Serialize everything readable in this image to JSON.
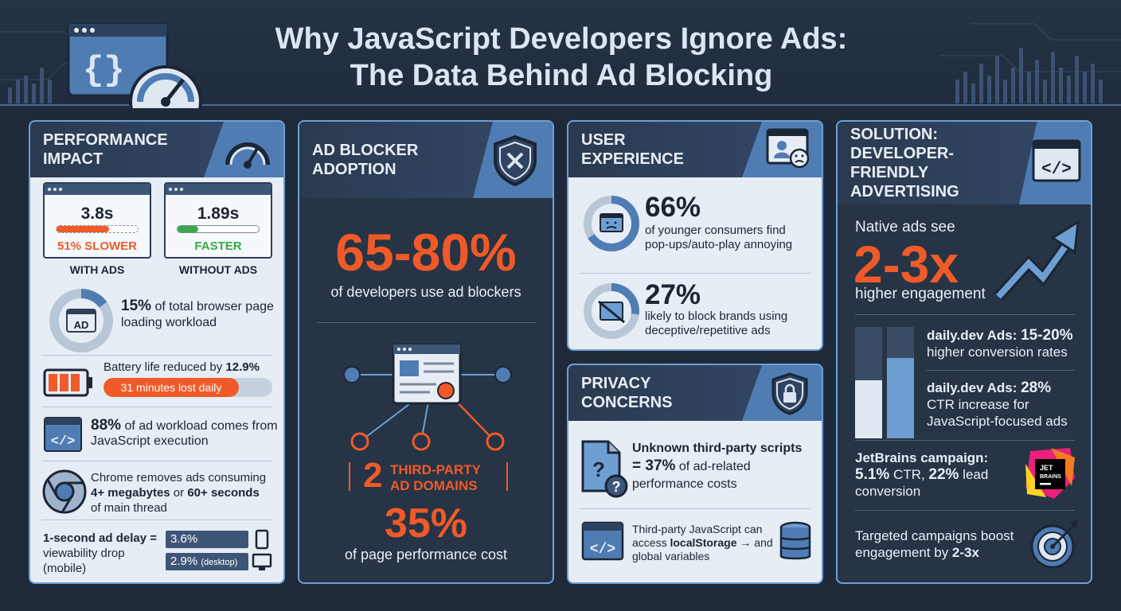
{
  "header": {
    "title_line1": "Why JavaScript Developers Ignore Ads:",
    "title_line2": "The Data Behind Ad Blocking"
  },
  "performance": {
    "title": "PERFORMANCE IMPACT",
    "with_ads": {
      "time": "3.8s",
      "note": "51% SLOWER",
      "label": "WITH ADS",
      "fill": 0.65
    },
    "without_ads": {
      "time": "1.89s",
      "note": "FASTER",
      "label": "WITHOUT ADS",
      "fill": 0.25
    },
    "workload": {
      "icon_text": "AD",
      "pct": "15%",
      "text": " of total browser page loading workload",
      "fill": 0.15
    },
    "battery": {
      "text": "Battery life reduced by ",
      "value": "12.9%",
      "bar_text": "31 minutes lost daily",
      "fill": 0.8
    },
    "js": {
      "pct": "88%",
      "text": " of ad workload comes from JavaScript execution"
    },
    "chrome": {
      "line1": "Chrome removes ads consuming",
      "b1": "4+ megabytes",
      "mid": " or ",
      "b2": "60+ seconds",
      "line3": "of main thread"
    },
    "delay": {
      "label_bold": "1-second ad delay =",
      "label": " viewability drop (mobile)",
      "mobile": "3.6%",
      "desktop": "2.9%",
      "desktop_note": "(desktop)"
    }
  },
  "adoption": {
    "title": "AD BLOCKER ADOPTION",
    "range": "65-80%",
    "range_text": "of developers use ad blockers",
    "domains_num": "2",
    "domains_text": "THIRD-PARTY AD DOMAINS",
    "cost_pct": "35%",
    "cost_text": "of page performance cost"
  },
  "ux": {
    "title": "USER EXPERIENCE",
    "stat1": {
      "pct": "66%",
      "text": "of younger consumers find pop-ups/auto-play annoying",
      "fill": 0.66
    },
    "stat2": {
      "pct": "27%",
      "text": "likely to block brands using deceptive/repetitive ads",
      "fill": 0.27
    }
  },
  "privacy": {
    "title": "PRIVACY CONCERNS",
    "stat1": {
      "bold1": "Unknown third-party scripts",
      "bold2": "= 37%",
      "text": " of ad-related performance costs"
    },
    "stat2": {
      "line": "Third-party JavaScript can access ",
      "bold": "localStorage",
      "arrow": " →",
      "rest": " and global variables"
    }
  },
  "solution": {
    "title": "SOLUTION: DEVELOPER-FRIENDLY ADVERTISING",
    "native_lead": "Native ads see",
    "native_big": "2-3x",
    "native_text": "higher engagement",
    "dd1": {
      "label": "daily.dev Ads: ",
      "value": "15-20%",
      "text": "higher conversion rates",
      "fill": 0.52
    },
    "dd2": {
      "label": "daily.dev Ads: ",
      "value": "28%",
      "text": "CTR increase for JavaScript-focused ads",
      "fill": 0.72
    },
    "jb": {
      "label": "JetBrains campaign:",
      "ctr": "5.1%",
      "ctr_text": " CTR, ",
      "lead": "22%",
      "lead_text": " lead conversion",
      "logo": "JET BRAINS"
    },
    "target": {
      "text": "Targeted campaigns boost engagement by ",
      "value": "2-3x"
    }
  },
  "colors": {
    "accent": "#f05a28",
    "blue": "#4f7db3",
    "green": "#3aa84a",
    "dark": "#263446"
  }
}
